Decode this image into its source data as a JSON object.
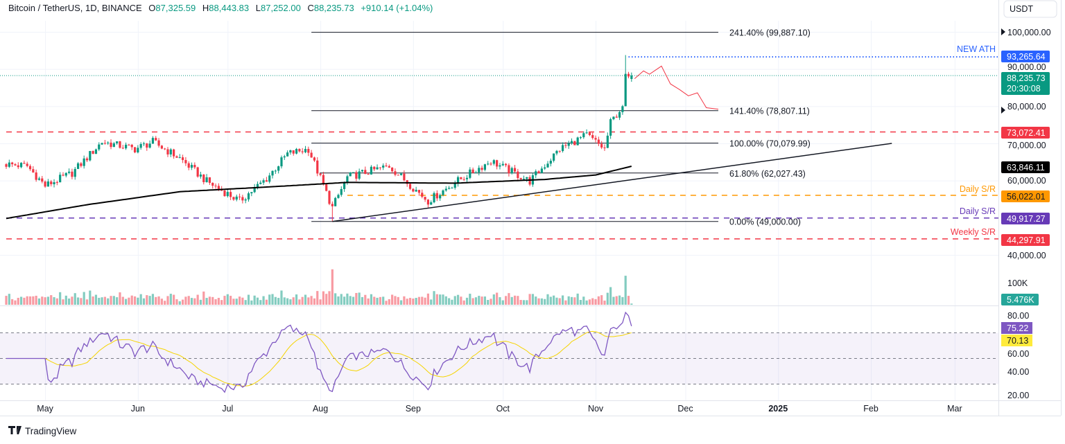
{
  "header": {
    "symbol": "Bitcoin / TetherUS, 1D, BINANCE",
    "o_label": "O",
    "o": "87,325.59",
    "h_label": "H",
    "h": "88,443.83",
    "l_label": "L",
    "l": "87,252.00",
    "c_label": "C",
    "c": "88,235.73",
    "change": "+910.14 (+1.04%)"
  },
  "currency_button": "USDT",
  "footer": {
    "logo_text": "TradingView"
  },
  "colors": {
    "up": "#089981",
    "down": "#f23645",
    "ma": "#000000",
    "rsi": "#7e57c2",
    "rsi_ma": "#f5d400",
    "ath": "#2962ff"
  },
  "price_axis": {
    "ticks": [
      "100,000.00",
      "90,000.00",
      "80,000.00",
      "70,000.00",
      "60,000.00",
      "40,000.00"
    ],
    "last_price": "88,235.73",
    "countdown": "20:30:08",
    "ath_price": "93,265.64",
    "r1_price": "73,072.41",
    "ma_price": "63,846.11",
    "s1_price": "56,022.01",
    "s2_price": "49,917.27",
    "s3_price": "44,297.91"
  },
  "levels": {
    "ath_label": "NEW ATH",
    "daily_sr_1": "Daily S/R",
    "daily_sr_2": "Daily S/R",
    "weekly_sr": "Weekly S/R"
  },
  "fib": [
    {
      "label": "241.40% (99,887.10)",
      "price": 99887.1
    },
    {
      "label": "141.40% (78,807.11)",
      "price": 78807.11
    },
    {
      "label": "100.00% (70,079.99)",
      "price": 70079.99
    },
    {
      "label": "61.80% (62,027.43)",
      "price": 62027.43
    },
    {
      "label": "0.00% (49,000.00)",
      "price": 49000.0
    }
  ],
  "volume_axis": {
    "tick": "100K",
    "last": "5.476K"
  },
  "rsi_axis": {
    "ticks": [
      "80.00",
      "60.00",
      "40.00",
      "20.00"
    ],
    "rsi": "75.22",
    "rsi_ma": "70.13"
  },
  "time_axis": [
    "May",
    "Jun",
    "Jul",
    "Aug",
    "Sep",
    "Oct",
    "Nov",
    "Dec",
    "2025",
    "Feb",
    "Mar"
  ],
  "chart_data": {
    "type": "candlestick",
    "title": "Bitcoin / TetherUS, 1D, BINANCE",
    "ylim": [
      20000,
      106000
    ],
    "price_keypoints": [
      [
        "2024-04-18",
        64400
      ],
      [
        "2024-04-25",
        63900
      ],
      [
        "2024-05-01",
        58600
      ],
      [
        "2024-05-10",
        62000
      ],
      [
        "2024-05-20",
        70400
      ],
      [
        "2024-05-31",
        68500
      ],
      [
        "2024-06-06",
        70400
      ],
      [
        "2024-06-15",
        66000
      ],
      [
        "2024-06-24",
        59800
      ],
      [
        "2024-07-05",
        54500
      ],
      [
        "2024-07-14",
        60500
      ],
      [
        "2024-07-21",
        67200
      ],
      [
        "2024-07-28",
        68500
      ],
      [
        "2024-08-05",
        52700
      ],
      [
        "2024-08-10",
        60900
      ],
      [
        "2024-08-24",
        63900
      ],
      [
        "2024-09-06",
        54500
      ],
      [
        "2024-09-15",
        59500
      ],
      [
        "2024-09-27",
        65300
      ],
      [
        "2024-10-10",
        59800
      ],
      [
        "2024-10-20",
        68500
      ],
      [
        "2024-10-29",
        72200
      ],
      [
        "2024-11-04",
        68500
      ],
      [
        "2024-11-06",
        75600
      ],
      [
        "2024-11-10",
        80000
      ],
      [
        "2024-11-11",
        88700
      ],
      [
        "2024-11-12",
        88000
      ],
      [
        "2024-11-13",
        88235.73
      ]
    ],
    "ma200_keypoints": [
      [
        "2024-04-18",
        49800
      ],
      [
        "2024-05-15",
        53500
      ],
      [
        "2024-06-15",
        57000
      ],
      [
        "2024-07-15",
        58300
      ],
      [
        "2024-08-10",
        59500
      ],
      [
        "2024-09-15",
        59300
      ],
      [
        "2024-10-15",
        60300
      ],
      [
        "2024-11-01",
        61500
      ],
      [
        "2024-11-13",
        63846.11
      ]
    ],
    "trendline": [
      [
        "2024-08-05",
        49000
      ],
      [
        "2025-02-08",
        70000
      ]
    ],
    "projection": [
      [
        "2024-11-14",
        87400
      ],
      [
        "2024-11-17",
        89500
      ],
      [
        "2024-11-19",
        88600
      ],
      [
        "2024-11-23",
        90800
      ],
      [
        "2024-11-26",
        86000
      ],
      [
        "2024-11-29",
        84500
      ],
      [
        "2024-12-02",
        82800
      ],
      [
        "2024-12-05",
        83600
      ],
      [
        "2024-12-08",
        79600
      ],
      [
        "2024-12-12",
        79200
      ]
    ],
    "horizontal_levels": [
      {
        "name": "new-ath",
        "price": 93265.64,
        "start": "2024-11-12",
        "style": "dotted",
        "color": "#2962ff"
      },
      {
        "name": "resistance",
        "price": 73072.41,
        "start": "2024-04-18",
        "style": "dashed",
        "color": "#f23645"
      },
      {
        "name": "daily-sr-1",
        "price": 56022.01,
        "start": "2024-08-10",
        "style": "dashed",
        "color": "#ff9800"
      },
      {
        "name": "daily-sr-2",
        "price": 49917.27,
        "start": "2024-04-18",
        "style": "dashed",
        "color": "#673ab7"
      },
      {
        "name": "weekly-sr",
        "price": 44297.91,
        "start": "2024-04-18",
        "style": "dashed",
        "color": "#f23645"
      }
    ],
    "fib_start": "2024-07-29",
    "fib_end": "2024-12-12",
    "rsi_bands": [
      70,
      50,
      30
    ],
    "rsi_last": 75.22,
    "rsi_ma_last": 70.13,
    "volume_last": 5476
  }
}
